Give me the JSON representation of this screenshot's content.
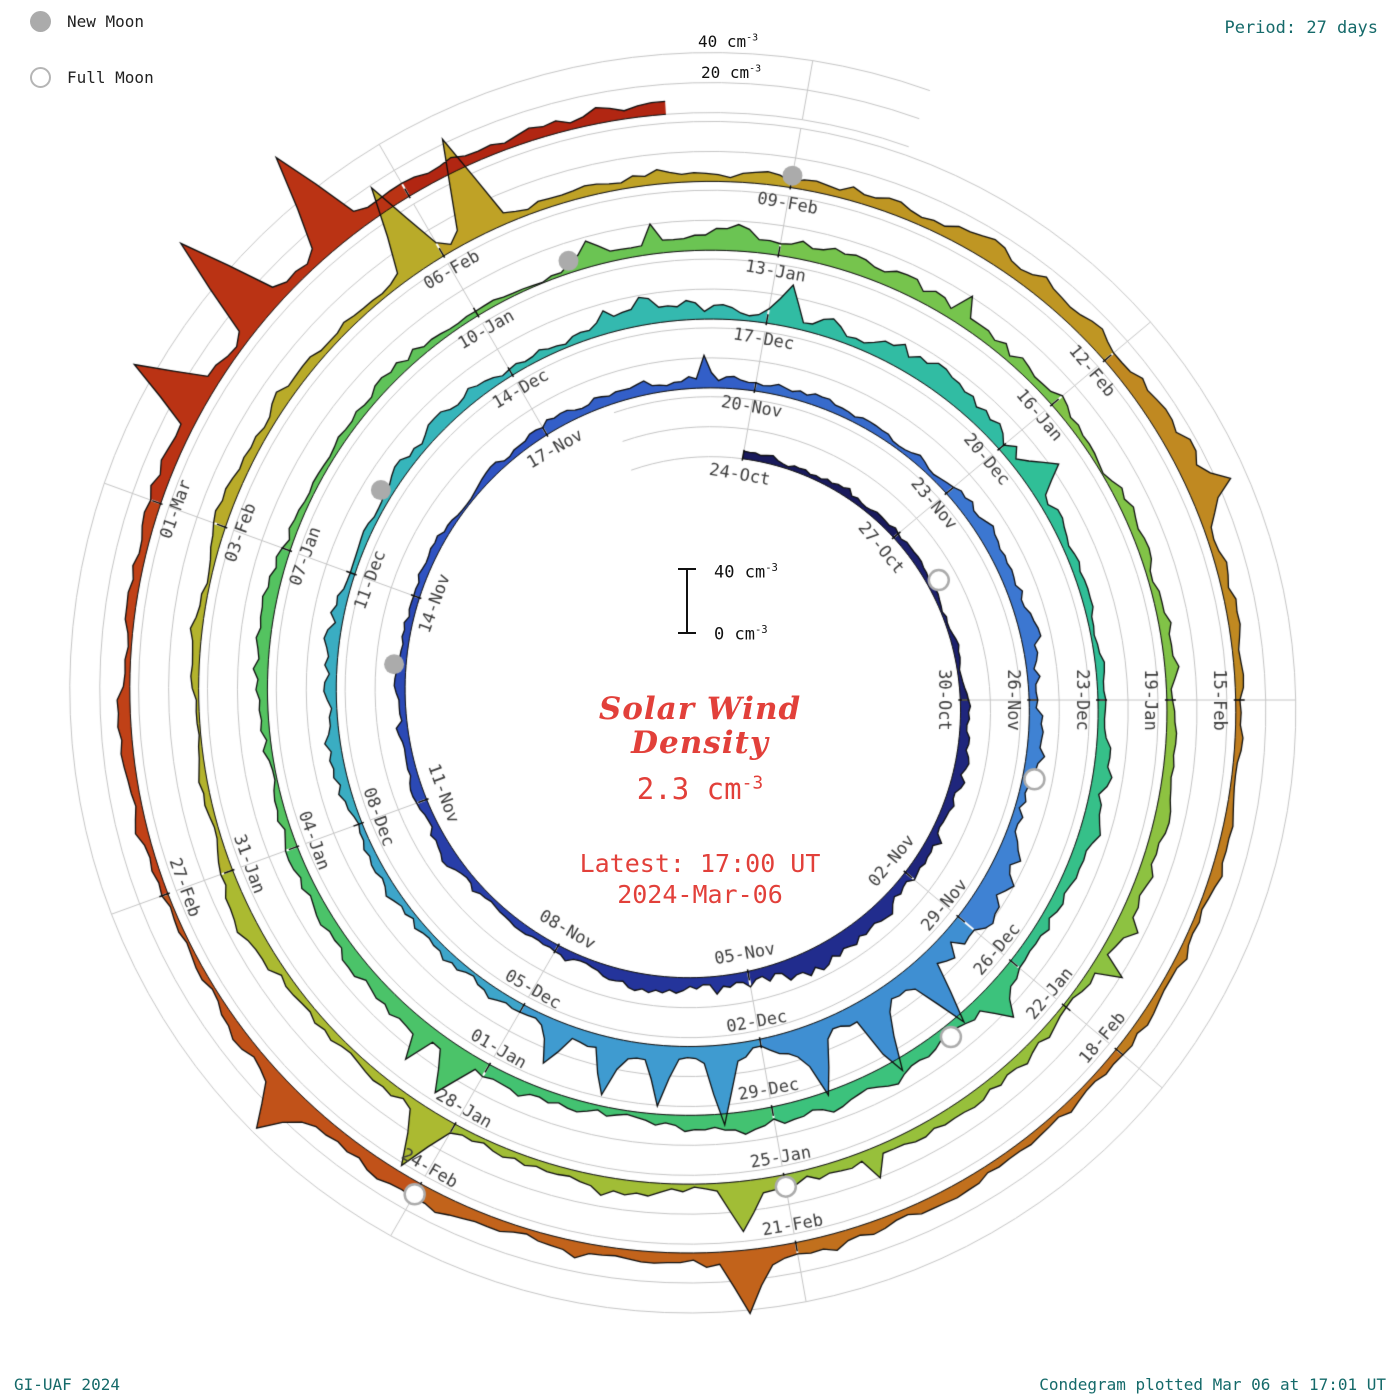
{
  "header": {
    "period_label": "Period: 27 days"
  },
  "legend": [
    {
      "label": "New Moon",
      "style": "filled"
    },
    {
      "label": "Full Moon",
      "style": "open"
    }
  ],
  "footer": {
    "left": "GI-UAF 2024",
    "right": "Condegram plotted Mar 06 at 17:01 UT"
  },
  "axis_labels": [
    {
      "text": "40 cm",
      "sup": "-3"
    },
    {
      "text": "20 cm",
      "sup": "-3"
    }
  ],
  "scalebar": {
    "max_text": "40 cm",
    "min_text": "0 cm",
    "sup": "-3"
  },
  "center": {
    "title_line1": "Solar Wind",
    "title_line2": "Density",
    "value": "2.3 cm",
    "value_sup": "-3",
    "latest_line1": "Latest: 17:00 UT",
    "latest_line2": "2024-Mar-06"
  },
  "colors": {
    "accent_red": "#e2403a",
    "corner_text": "#156a6a",
    "grid": "#c4c4c4",
    "trace_stroke": "#0d0d0d",
    "tick_label": "#3c3c3c",
    "moon": "#ababab",
    "white": "#ffffff"
  },
  "chart_data": {
    "type": "area",
    "variant": "condegram-spiral",
    "title": "Solar Wind Density",
    "units": "cm^-3",
    "period_days": 27,
    "start_date": "2023-Oct-24",
    "end_date": "2024-Mar-06",
    "latest_value_cm3": 2.3,
    "latest_time": "17:00 UT 2024-Mar-06",
    "radial_gridlines_cm3": [
      0,
      20,
      40
    ],
    "tick_step_days": 3,
    "tick_labels": [
      "24-Oct",
      "27-Oct",
      "30-Oct",
      "02-Nov",
      "05-Nov",
      "08-Nov",
      "11-Nov",
      "14-Nov",
      "17-Nov",
      "20-Nov",
      "23-Nov",
      "26-Nov",
      "29-Nov",
      "02-Dec",
      "05-Dec",
      "08-Dec",
      "11-Dec",
      "14-Dec",
      "17-Dec",
      "20-Dec",
      "23-Dec",
      "26-Dec",
      "29-Dec",
      "01-Jan",
      "04-Jan",
      "07-Jan",
      "10-Jan",
      "13-Jan",
      "16-Jan",
      "19-Jan",
      "22-Jan",
      "25-Jan",
      "28-Jan",
      "31-Jan",
      "03-Feb",
      "06-Feb",
      "09-Feb",
      "12-Feb",
      "15-Feb",
      "18-Feb",
      "21-Feb",
      "24-Feb",
      "27-Feb",
      "01-Mar"
    ],
    "segment_mean_density": [
      5,
      4,
      4,
      7,
      9,
      6,
      5,
      4,
      5,
      6,
      6,
      7,
      12,
      12,
      6,
      5,
      6,
      8,
      12,
      9,
      7,
      7,
      8,
      8,
      6,
      5,
      5,
      9,
      7,
      5,
      6,
      7,
      6,
      8,
      5,
      8,
      7,
      9,
      6,
      4,
      6,
      8,
      6,
      6
    ],
    "spikes": [
      {
        "day": 36.8,
        "amp": 36
      },
      {
        "day": 37.6,
        "amp": 40
      },
      {
        "day": 38.4,
        "amp": 30
      },
      {
        "day": 39.5,
        "amp": 44
      },
      {
        "day": 40.2,
        "amp": 34
      },
      {
        "day": 40.8,
        "amp": 26
      },
      {
        "day": 41.5,
        "amp": 20
      },
      {
        "day": 54.2,
        "amp": 24
      },
      {
        "day": 57.5,
        "amp": 18
      },
      {
        "day": 63.4,
        "amp": 16
      },
      {
        "day": 69.3,
        "amp": 22
      },
      {
        "day": 79.2,
        "amp": 14
      },
      {
        "day": 93.4,
        "amp": 26
      },
      {
        "day": 96.2,
        "amp": 38
      },
      {
        "day": 104.8,
        "amp": 58
      },
      {
        "day": 105.4,
        "amp": 62
      },
      {
        "day": 112.3,
        "amp": 20
      },
      {
        "day": 120.4,
        "amp": 36
      },
      {
        "day": 124.2,
        "amp": 30
      },
      {
        "day": 129.8,
        "amp": 46
      },
      {
        "day": 130.6,
        "amp": 72
      },
      {
        "day": 131.4,
        "amp": 64
      }
    ],
    "color_stops": [
      [
        0.0,
        "#191a5c"
      ],
      [
        0.08,
        "#232f96"
      ],
      [
        0.16,
        "#2f55c4"
      ],
      [
        0.24,
        "#3f7fd4"
      ],
      [
        0.3,
        "#3fa0cf"
      ],
      [
        0.36,
        "#36b6ba"
      ],
      [
        0.42,
        "#2fbf9a"
      ],
      [
        0.48,
        "#3ec276"
      ],
      [
        0.54,
        "#55c35f"
      ],
      [
        0.6,
        "#74c44e"
      ],
      [
        0.66,
        "#92c23e"
      ],
      [
        0.72,
        "#adba30"
      ],
      [
        0.78,
        "#bfa426"
      ],
      [
        0.84,
        "#c08320"
      ],
      [
        0.9,
        "#c2601b"
      ],
      [
        0.95,
        "#c03a16"
      ],
      [
        1.0,
        "#aa1d10"
      ]
    ],
    "new_moon_days": [
      20,
      49,
      79,
      108
    ],
    "full_moon_days": [
      4,
      34,
      64,
      93,
      123
    ]
  }
}
